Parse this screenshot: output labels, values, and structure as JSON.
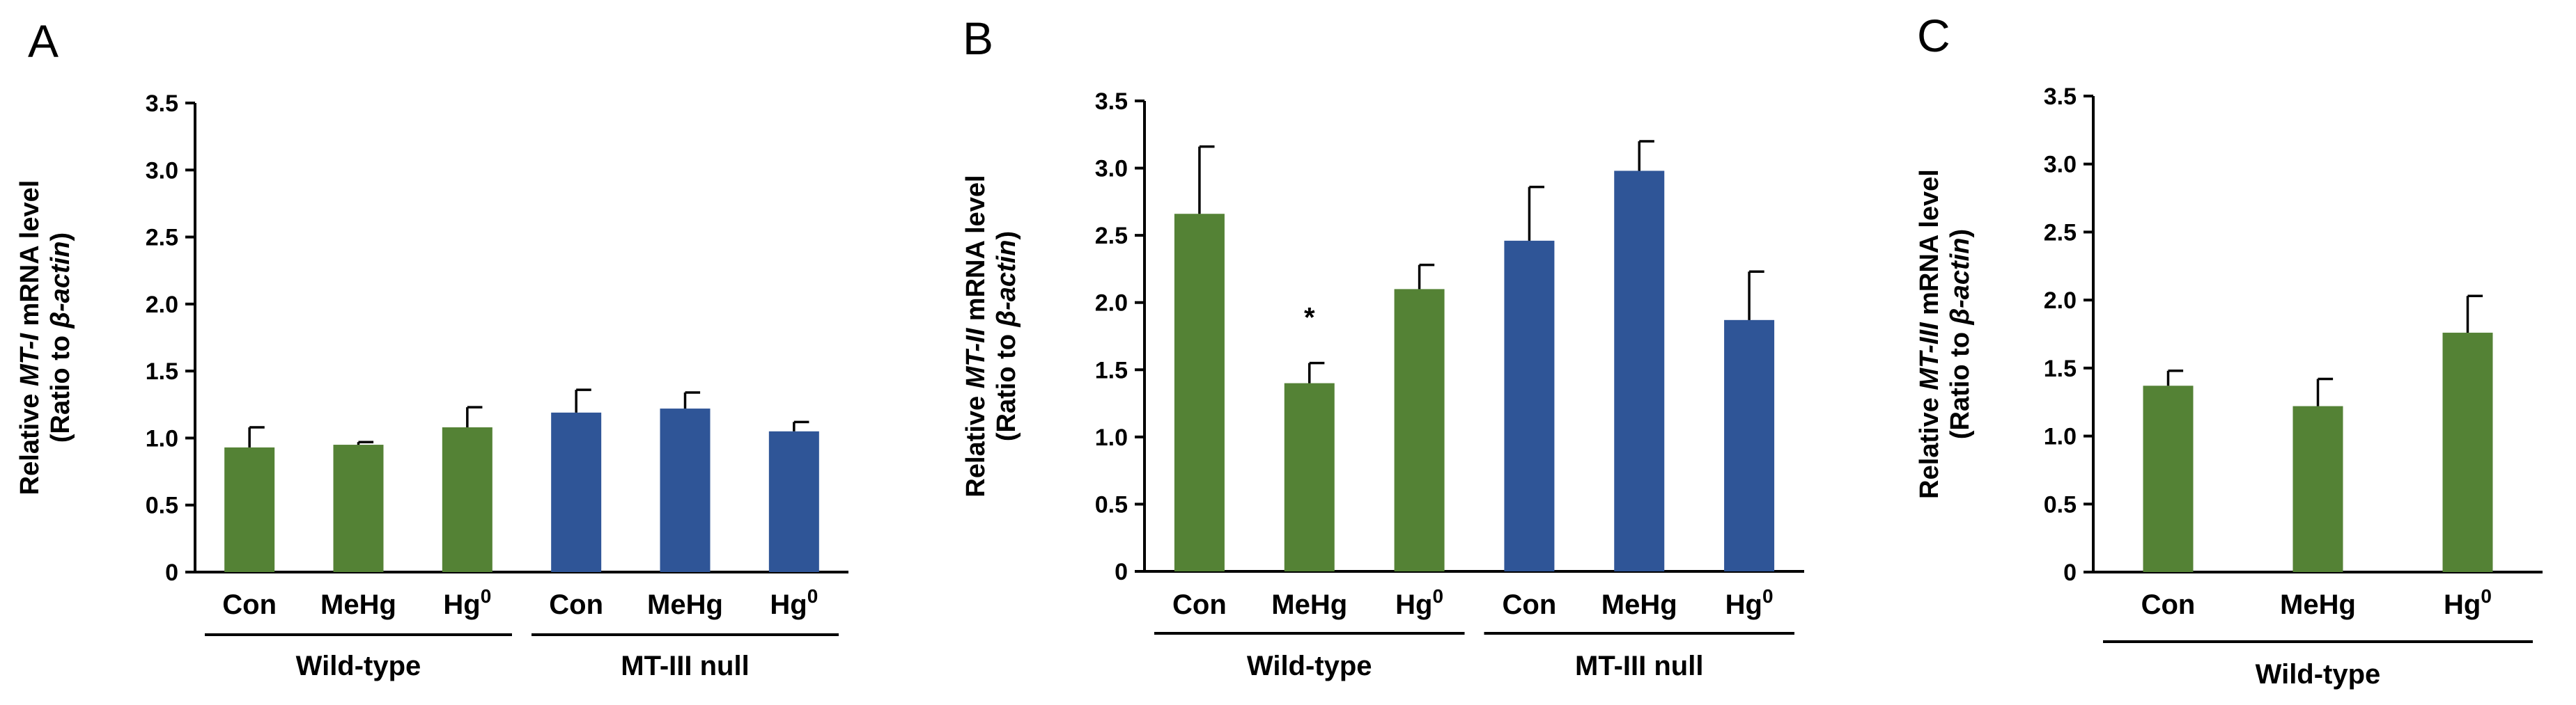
{
  "colors": {
    "wildtype": "#548235",
    "null": "#2F5597",
    "axis": "#000000"
  },
  "chart_data": [
    {
      "type": "bar",
      "panel_label": "A",
      "ylabel_parts": {
        "pre": "Relative ",
        "gene": "MT-I",
        "post": " mRNA level",
        "line2_pre": "(Ratio to ",
        "line2_gene": "β-actin",
        "line2_post": ")"
      },
      "ylim": [
        0,
        3.5
      ],
      "yticks": [
        "0",
        "0.5",
        "1.0",
        "1.5",
        "2.0",
        "2.5",
        "3.0",
        "3.5"
      ],
      "categories": [
        "Con",
        "MeHg",
        "Hg0",
        "Con",
        "MeHg",
        "Hg0"
      ],
      "category_labels": [
        {
          "base": "Con",
          "sup": ""
        },
        {
          "base": "MeHg",
          "sup": ""
        },
        {
          "base": "Hg",
          "sup": "0"
        },
        {
          "base": "Con",
          "sup": ""
        },
        {
          "base": "MeHg",
          "sup": ""
        },
        {
          "base": "Hg",
          "sup": "0"
        }
      ],
      "groups": [
        {
          "name": "Wild-type",
          "start": 0,
          "end": 2
        },
        {
          "name": "MT-III null",
          "start": 3,
          "end": 5
        }
      ],
      "values": [
        0.93,
        0.95,
        1.08,
        1.19,
        1.22,
        1.05
      ],
      "errors": [
        0.15,
        0.02,
        0.15,
        0.17,
        0.12,
        0.07
      ],
      "bar_group": [
        0,
        0,
        0,
        1,
        1,
        1
      ],
      "significance": [
        "",
        "",
        "",
        "",
        "",
        ""
      ]
    },
    {
      "type": "bar",
      "panel_label": "B",
      "ylabel_parts": {
        "pre": "Relative ",
        "gene": "MT-II",
        "post": " mRNA level",
        "line2_pre": "(Ratio to ",
        "line2_gene": "β-actin",
        "line2_post": ")"
      },
      "ylim": [
        0,
        3.5
      ],
      "yticks": [
        "0",
        "0.5",
        "1.0",
        "1.5",
        "2.0",
        "2.5",
        "3.0",
        "3.5"
      ],
      "categories": [
        "Con",
        "MeHg",
        "Hg0",
        "Con",
        "MeHg",
        "Hg0"
      ],
      "category_labels": [
        {
          "base": "Con",
          "sup": ""
        },
        {
          "base": "MeHg",
          "sup": ""
        },
        {
          "base": "Hg",
          "sup": "0"
        },
        {
          "base": "Con",
          "sup": ""
        },
        {
          "base": "MeHg",
          "sup": ""
        },
        {
          "base": "Hg",
          "sup": "0"
        }
      ],
      "groups": [
        {
          "name": "Wild-type",
          "start": 0,
          "end": 2
        },
        {
          "name": "MT-III null",
          "start": 3,
          "end": 5
        }
      ],
      "values": [
        2.66,
        1.4,
        2.1,
        2.46,
        2.98,
        1.87
      ],
      "errors": [
        0.5,
        0.15,
        0.18,
        0.4,
        0.22,
        0.36
      ],
      "bar_group": [
        0,
        0,
        0,
        1,
        1,
        1
      ],
      "significance": [
        "",
        "*",
        "",
        "",
        "",
        ""
      ]
    },
    {
      "type": "bar",
      "panel_label": "C",
      "ylabel_parts": {
        "pre": "Relative ",
        "gene": "MT-III",
        "post": " mRNA level",
        "line2_pre": "(Ratio to ",
        "line2_gene": "β-actin",
        "line2_post": ")"
      },
      "ylim": [
        0,
        3.5
      ],
      "yticks": [
        "0",
        "0.5",
        "1.0",
        "1.5",
        "2.0",
        "2.5",
        "3.0",
        "3.5"
      ],
      "categories": [
        "Con",
        "MeHg",
        "Hg0"
      ],
      "category_labels": [
        {
          "base": "Con",
          "sup": ""
        },
        {
          "base": "MeHg",
          "sup": ""
        },
        {
          "base": "Hg",
          "sup": "0"
        }
      ],
      "groups": [
        {
          "name": "Wild-type",
          "start": 0,
          "end": 2
        }
      ],
      "values": [
        1.37,
        1.22,
        1.76
      ],
      "errors": [
        0.11,
        0.2,
        0.27
      ],
      "bar_group": [
        0,
        0,
        0
      ],
      "significance": [
        "",
        "",
        ""
      ]
    }
  ]
}
